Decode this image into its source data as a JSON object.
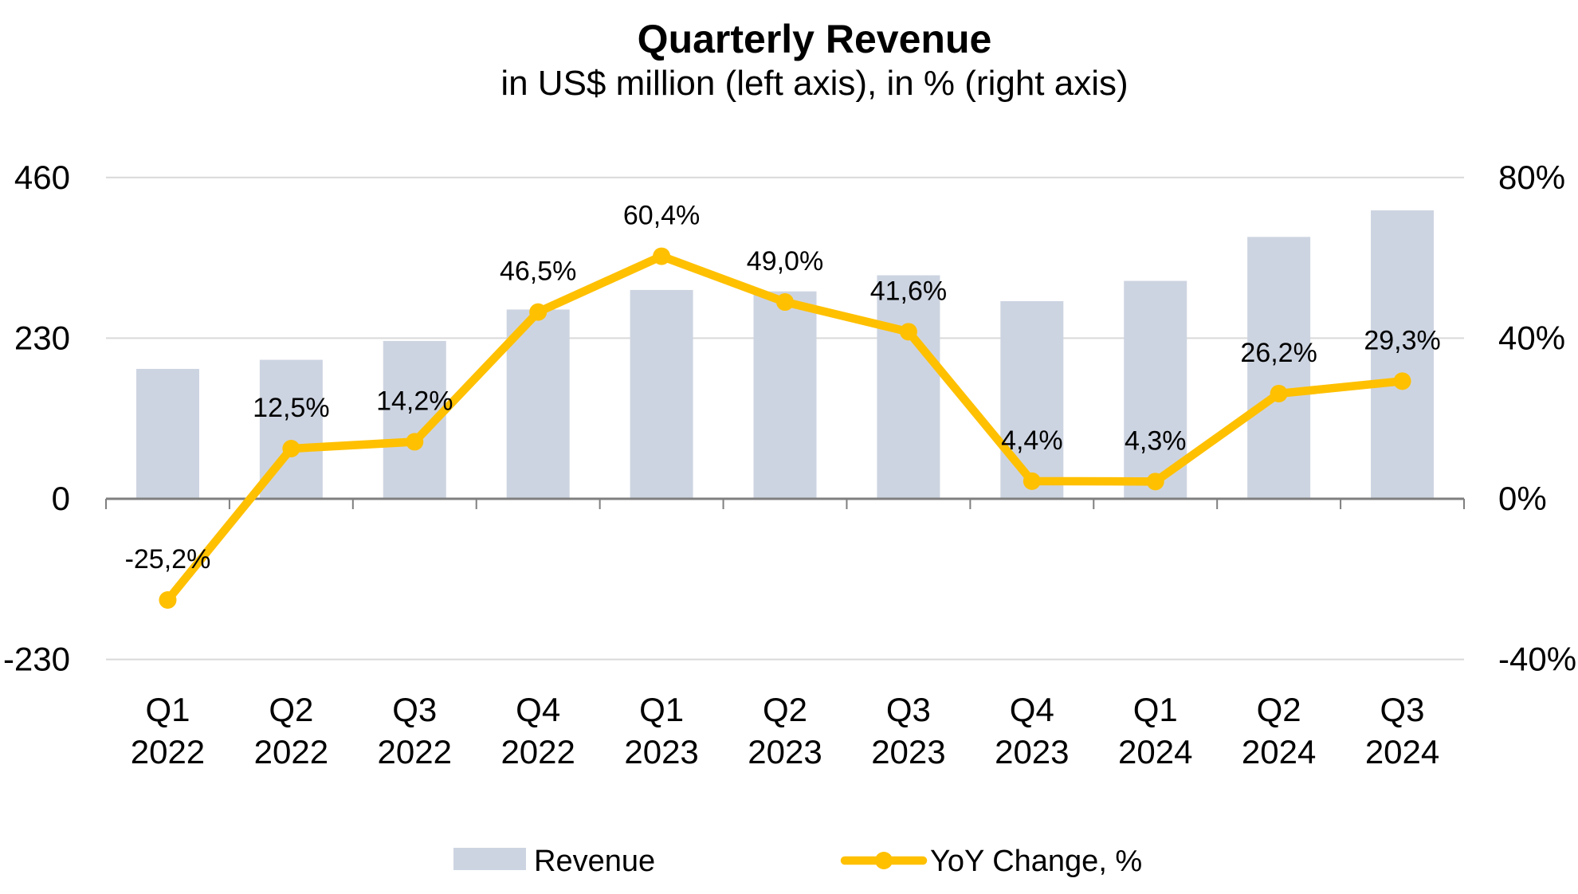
{
  "header": {
    "title": "Quarterly Revenue",
    "subtitle": "in US$ million (left axis), in % (right axis)"
  },
  "chart_data": {
    "type": "combo-bar-line",
    "categories": [
      "Q1 2022",
      "Q2 2022",
      "Q3 2022",
      "Q4 2022",
      "Q1 2023",
      "Q2 2023",
      "Q3 2023",
      "Q4 2023",
      "Q1 2024",
      "Q2 2024",
      "Q3 2024"
    ],
    "series": [
      {
        "name": "Revenue",
        "type": "bar",
        "axis": "left",
        "unit": "US$ million",
        "color": "#CDD4E1",
        "values": [
          186,
          199,
          226,
          271,
          299,
          297,
          320,
          283,
          312,
          375,
          413
        ]
      },
      {
        "name": "YoY Change, %",
        "type": "line",
        "axis": "right",
        "unit": "%",
        "color": "#FFC000",
        "values": [
          -25.2,
          12.5,
          14.2,
          46.5,
          60.4,
          49.0,
          41.6,
          4.4,
          4.3,
          26.2,
          29.3
        ],
        "point_labels": [
          "-25,2%",
          "12,5%",
          "14,2%",
          "46,5%",
          "60,4%",
          "49,0%",
          "41,6%",
          "4,4%",
          "4,3%",
          "26,2%",
          "29,3%"
        ]
      }
    ],
    "left_axis": {
      "ticks": [
        460,
        230,
        0,
        -230
      ],
      "tick_labels": [
        "460",
        "230",
        "0",
        "-230"
      ],
      "ylim": [
        -230,
        460
      ],
      "gridline_values": [
        460,
        230,
        -230
      ]
    },
    "right_axis": {
      "ticks": [
        80,
        40,
        0,
        -40
      ],
      "tick_labels": [
        "80%",
        "40%",
        "0%",
        "-40%"
      ],
      "ylim": [
        -40,
        80
      ]
    },
    "grid": true,
    "legend_position": "bottom"
  },
  "legend": {
    "items": [
      {
        "label": "Revenue",
        "marker": "bar-swatch"
      },
      {
        "label": "YoY Change, %",
        "marker": "line-with-dot"
      }
    ]
  },
  "colors": {
    "bar_fill": "#CDD4E1",
    "line_stroke": "#FFC000",
    "gridline": "#D9D9D9",
    "axis_line": "#7F7F7F",
    "text": "#000000"
  }
}
